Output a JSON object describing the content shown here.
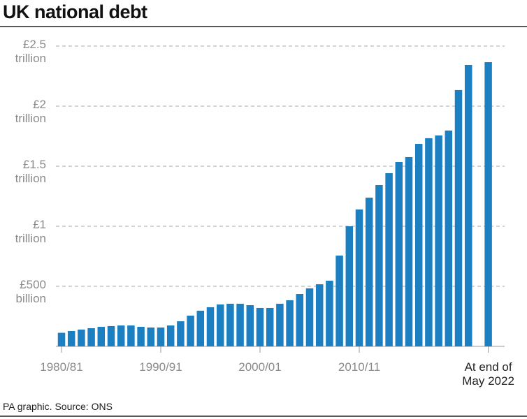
{
  "chart_data": {
    "type": "bar",
    "title": "UK national debt",
    "source": "PA graphic. Source: ONS",
    "categories": [
      "1980/81",
      null,
      null,
      null,
      null,
      null,
      null,
      null,
      null,
      null,
      "1990/91",
      null,
      null,
      null,
      null,
      null,
      null,
      null,
      null,
      null,
      "2000/01",
      null,
      null,
      null,
      null,
      null,
      null,
      null,
      null,
      null,
      "2010/11",
      null,
      null,
      null,
      null,
      null,
      null,
      null,
      null,
      null,
      null,
      null,
      "At end of\nMay 2022"
    ],
    "values": [
      113,
      128,
      140,
      151,
      163,
      169,
      174,
      174,
      163,
      157,
      157,
      174,
      209,
      256,
      297,
      326,
      349,
      355,
      355,
      343,
      320,
      320,
      355,
      384,
      436,
      483,
      517,
      547,
      756,
      1000,
      1140,
      1238,
      1343,
      1442,
      1535,
      1576,
      1686,
      1733,
      1756,
      1797,
      2134,
      2343,
      2366
    ],
    "color": "#1b7fc2",
    "ylim": [
      0,
      2500
    ],
    "yticks": [
      {
        "value": 500,
        "label": "£500\nbillion"
      },
      {
        "value": 1000,
        "label": "£1\ntrillion"
      },
      {
        "value": 1500,
        "label": "£1.5\ntrillion"
      },
      {
        "value": 2000,
        "label": "£2\ntrillion"
      },
      {
        "value": 2500,
        "label": "£2.5\ntrillion"
      }
    ],
    "grid": true
  }
}
